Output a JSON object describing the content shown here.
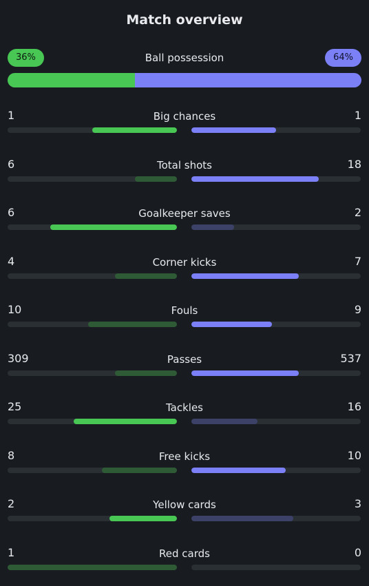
{
  "header": {
    "title": "Match overview"
  },
  "possession": {
    "label": "Ball possession",
    "home": "36%",
    "away": "64%",
    "home_fraction": 0.36
  },
  "colors": {
    "home": "#48c754",
    "away": "#7b80f7",
    "home_muted": "#2e5a35",
    "away_muted": "#3c4168",
    "track": "#2a2f34"
  },
  "stats": [
    {
      "label": "Big chances",
      "home": "1",
      "away": "1",
      "home_frac": 0.5,
      "away_frac": 0.5,
      "winner": "both"
    },
    {
      "label": "Total shots",
      "home": "6",
      "away": "18",
      "home_frac": 0.25,
      "away_frac": 0.75,
      "winner": "away"
    },
    {
      "label": "Goalkeeper saves",
      "home": "6",
      "away": "2",
      "home_frac": 0.75,
      "away_frac": 0.25,
      "winner": "home"
    },
    {
      "label": "Corner kicks",
      "home": "4",
      "away": "7",
      "home_frac": 0.364,
      "away_frac": 0.636,
      "winner": "away"
    },
    {
      "label": "Fouls",
      "home": "10",
      "away": "9",
      "home_frac": 0.526,
      "away_frac": 0.474,
      "winner": "away"
    },
    {
      "label": "Passes",
      "home": "309",
      "away": "537",
      "home_frac": 0.365,
      "away_frac": 0.635,
      "winner": "away"
    },
    {
      "label": "Tackles",
      "home": "25",
      "away": "16",
      "home_frac": 0.61,
      "away_frac": 0.39,
      "winner": "home"
    },
    {
      "label": "Free kicks",
      "home": "8",
      "away": "10",
      "home_frac": 0.444,
      "away_frac": 0.556,
      "winner": "away"
    },
    {
      "label": "Yellow cards",
      "home": "2",
      "away": "3",
      "home_frac": 0.4,
      "away_frac": 0.6,
      "winner": "home"
    },
    {
      "label": "Red cards",
      "home": "1",
      "away": "0",
      "home_frac": 1.0,
      "away_frac": 0.0,
      "winner": "away"
    }
  ]
}
